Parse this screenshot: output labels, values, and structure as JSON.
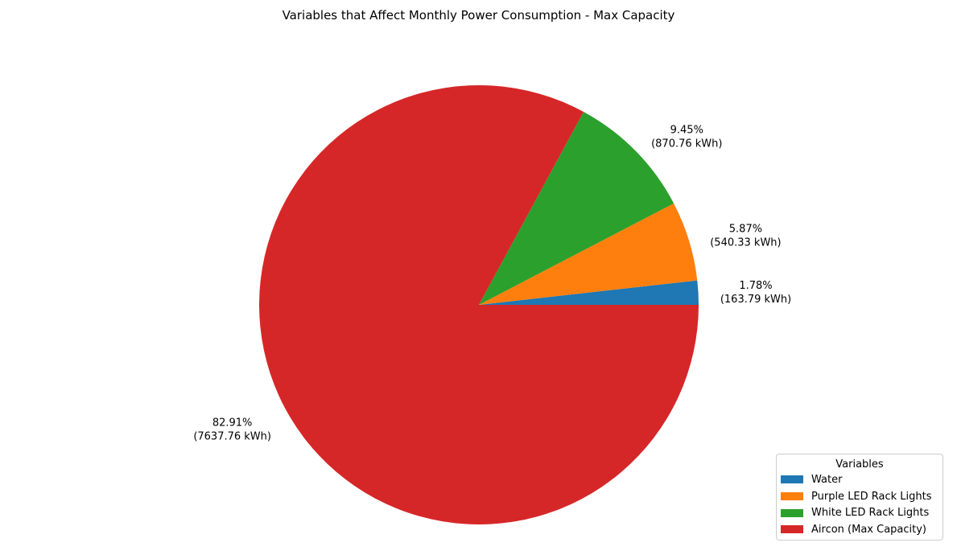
{
  "chart_data": {
    "type": "pie",
    "title": "Variables that Affect Monthly Power Consumption - Max Capacity",
    "slices": [
      {
        "label": "Water",
        "value": 163.79,
        "percent_text": "1.78%",
        "value_text": "(163.79 kWh)",
        "color": "#1f77b4"
      },
      {
        "label": "Purple LED Rack Lights",
        "value": 540.33,
        "percent_text": "5.87%",
        "value_text": "(540.33 kWh)",
        "color": "#ff7f0e"
      },
      {
        "label": "White LED Rack Lights",
        "value": 870.76,
        "percent_text": "9.45%",
        "value_text": "(870.76 kWh)",
        "color": "#2ca02c"
      },
      {
        "label": "Aircon (Max Capacity)",
        "value": 7637.76,
        "percent_text": "82.91%",
        "value_text": "(7637.76 kWh)",
        "color": "#d62728"
      }
    ],
    "legend": {
      "title": "Variables",
      "placement": "lower-right"
    }
  }
}
